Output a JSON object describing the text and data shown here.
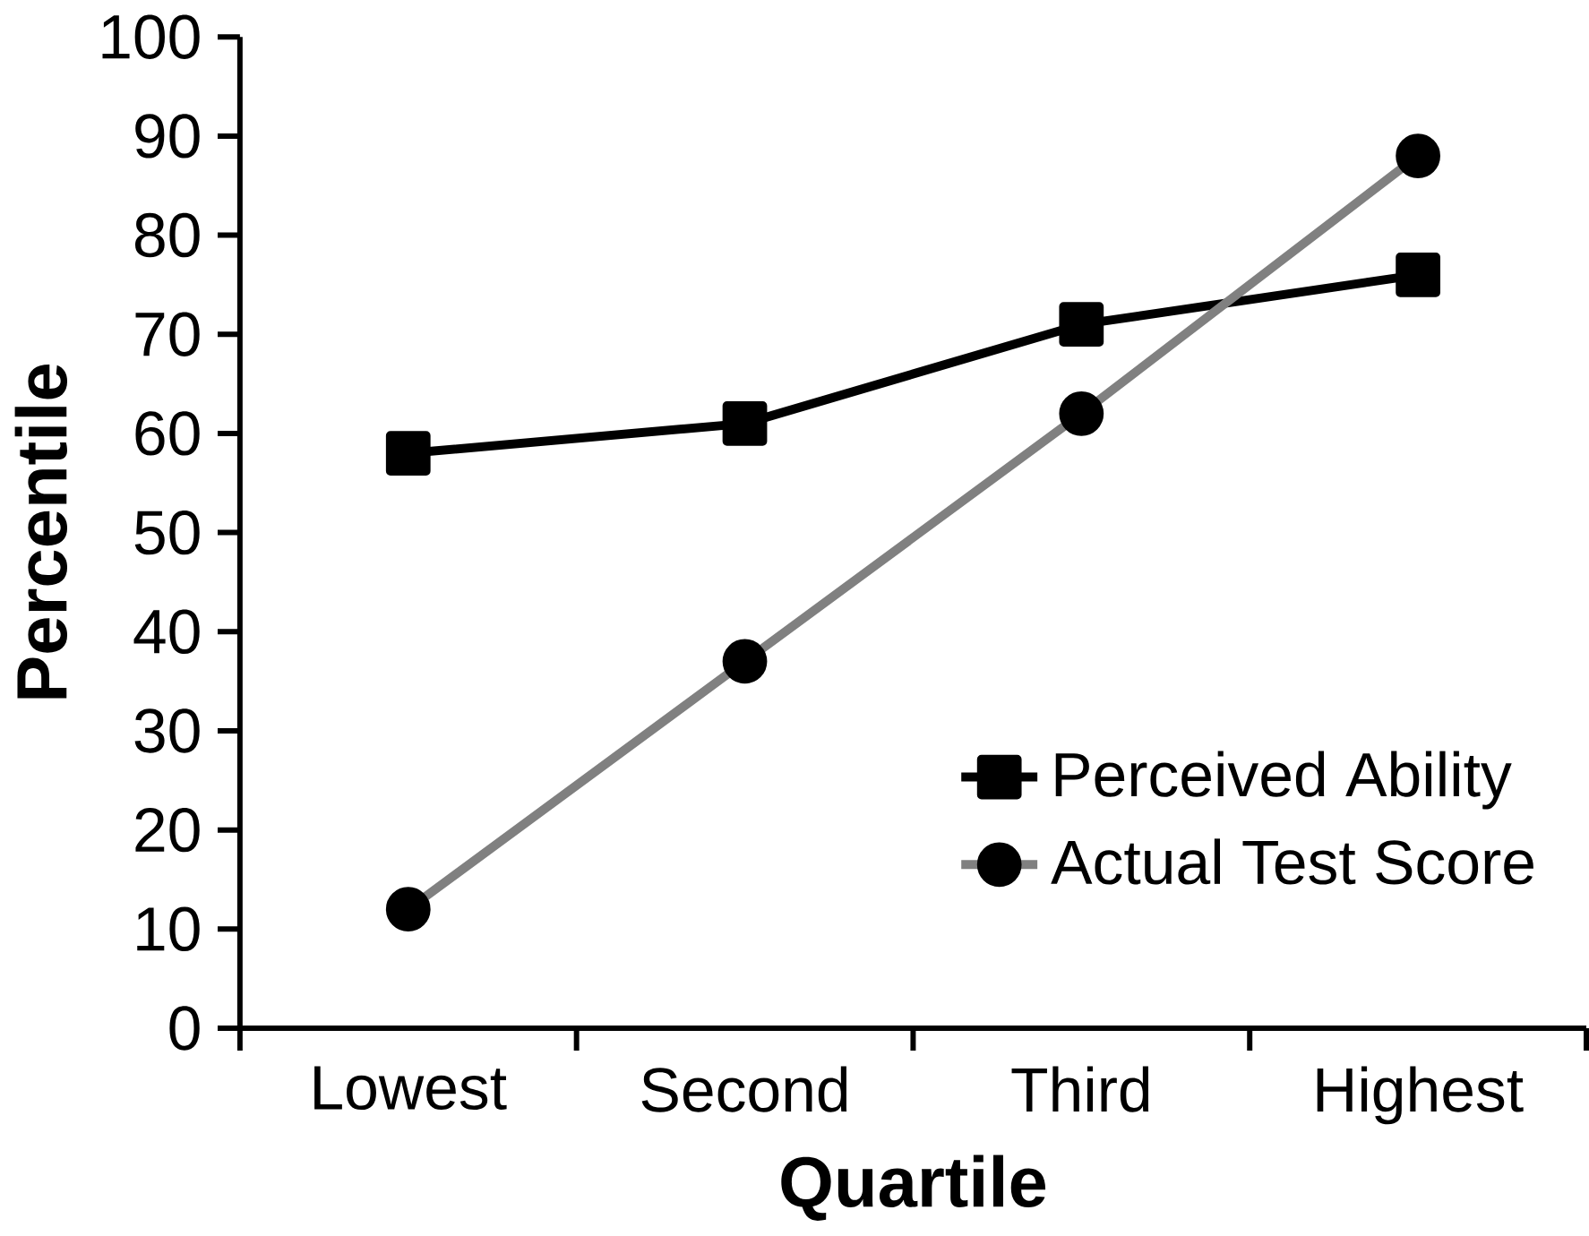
{
  "chart_data": {
    "type": "line",
    "xlabel": "Quartile",
    "ylabel": "Percentile",
    "categories": [
      "Lowest",
      "Second",
      "Third",
      "Highest"
    ],
    "series": [
      {
        "name": "Perceived Ability",
        "color": "#000000",
        "marker": "square",
        "values": [
          58,
          61,
          71,
          76
        ]
      },
      {
        "name": "Actual Test Score",
        "color": "#808080",
        "marker": "circle",
        "values": [
          12,
          37,
          62,
          88
        ]
      }
    ],
    "ylim": [
      0,
      100
    ],
    "yticks": [
      0,
      10,
      20,
      30,
      40,
      50,
      60,
      70,
      80,
      90,
      100
    ],
    "grid": false,
    "legend": "bottom right",
    "line_style": "solid"
  }
}
